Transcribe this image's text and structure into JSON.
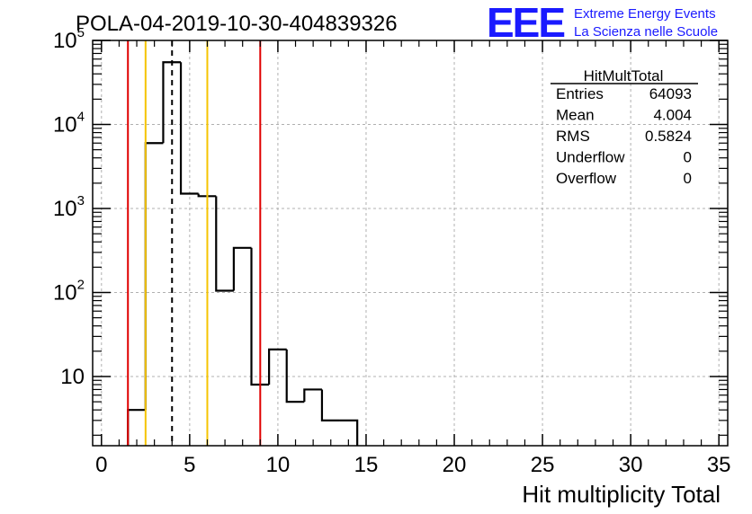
{
  "title": "POLA-04-2019-10-30-404839326",
  "logo": {
    "mark": "EEE",
    "line1": "Extreme Energy Events",
    "line2": "La Scienza nelle Scuole",
    "color": "#1a1aff"
  },
  "stats": {
    "name": "HitMultTotal",
    "rows": [
      {
        "label": "Entries",
        "value": "64093"
      },
      {
        "label": "Mean",
        "value": "4.004"
      },
      {
        "label": "RMS",
        "value": "0.5824"
      },
      {
        "label": "Underflow",
        "value": "0"
      },
      {
        "label": "Overflow",
        "value": "0"
      }
    ]
  },
  "chart_data": {
    "type": "histogram",
    "title": "POLA-04-2019-10-30-404839326",
    "xlabel": "Hit multiplicity Total",
    "ylabel": "",
    "xlim": [
      -0.5,
      35.5
    ],
    "ylim": [
      1.5,
      100000
    ],
    "yscale": "log",
    "grid": true,
    "bin_width": 1,
    "bin_low_edges": [
      1.5,
      2.5,
      3.5,
      4.5,
      5.5,
      6.5,
      7.5,
      8.5,
      9.5,
      10.5,
      11.5,
      12.5,
      13.5
    ],
    "counts": [
      4,
      6000,
      55000,
      1500,
      1400,
      105,
      340,
      8,
      21,
      5,
      7,
      3,
      3
    ],
    "x_ticks": [
      0,
      5,
      10,
      15,
      20,
      25,
      30,
      35
    ],
    "x_tick_labels": [
      "0",
      "5",
      "10",
      "15",
      "20",
      "25",
      "30",
      "35"
    ],
    "y_ticks": [
      10,
      100,
      1000,
      10000,
      100000
    ],
    "y_tick_labels": [
      {
        "base": "10",
        "exp": ""
      },
      {
        "base": "10",
        "exp": "2"
      },
      {
        "base": "10",
        "exp": "3"
      },
      {
        "base": "10",
        "exp": "4"
      },
      {
        "base": "10",
        "exp": "5"
      }
    ],
    "vertical_lines": [
      {
        "x": 1.5,
        "color": "#e00000",
        "style": "solid"
      },
      {
        "x": 2.5,
        "color": "#f5c400",
        "style": "solid"
      },
      {
        "x": 4.0,
        "color": "#000000",
        "style": "dashed"
      },
      {
        "x": 6.0,
        "color": "#f5c400",
        "style": "solid"
      },
      {
        "x": 9.0,
        "color": "#e00000",
        "style": "solid"
      }
    ]
  }
}
